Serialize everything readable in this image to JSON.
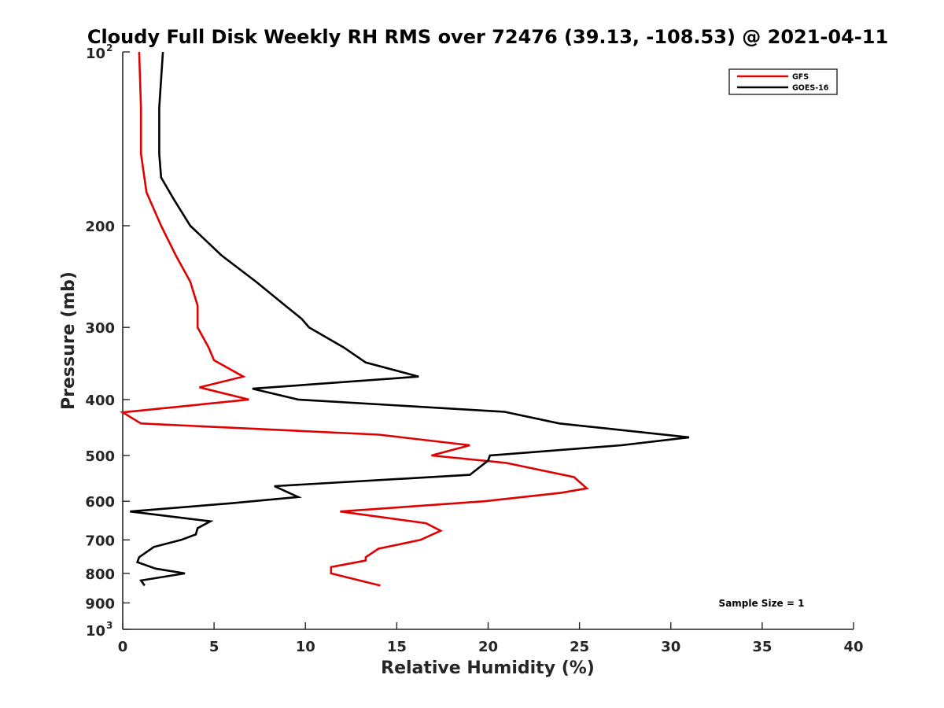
{
  "chart_data": {
    "type": "line",
    "title": "Cloudy Full Disk Weekly RH RMS over 72476 (39.13, -108.53) @ 2021-04-11",
    "xlabel": "Relative Humidity (%)",
    "ylabel": "Pressure (mb)",
    "xlim": [
      0,
      40
    ],
    "ylim": [
      100,
      1000
    ],
    "y_scale": "log",
    "y_reversed": true,
    "x_ticks": [
      0,
      5,
      10,
      15,
      20,
      25,
      30,
      35,
      40
    ],
    "y_ticks": [
      {
        "value": 100,
        "base": "10",
        "exp": "2"
      },
      {
        "value": 200,
        "label": "200"
      },
      {
        "value": 300,
        "label": "300"
      },
      {
        "value": 400,
        "label": "400"
      },
      {
        "value": 500,
        "label": "500"
      },
      {
        "value": 600,
        "label": "600"
      },
      {
        "value": 700,
        "label": "700"
      },
      {
        "value": 800,
        "label": "800"
      },
      {
        "value": 900,
        "label": "900"
      },
      {
        "value": 1000,
        "base": "10",
        "exp": "3"
      }
    ],
    "grid": false,
    "legend_position": "top-right",
    "annotation": "Sample Size = 1",
    "series": [
      {
        "name": "GFS",
        "color": "#e00000",
        "points": [
          [
            0.9,
            100
          ],
          [
            1.0,
            125
          ],
          [
            1.0,
            150
          ],
          [
            1.3,
            175
          ],
          [
            2.1,
            200
          ],
          [
            2.9,
            225
          ],
          [
            3.7,
            250
          ],
          [
            4.1,
            275
          ],
          [
            4.1,
            300
          ],
          [
            4.7,
            325
          ],
          [
            5.0,
            342
          ],
          [
            6.6,
            365
          ],
          [
            4.2,
            381
          ],
          [
            6.9,
            400
          ],
          [
            0.0,
            421
          ],
          [
            1.0,
            440
          ],
          [
            14.0,
            460
          ],
          [
            19.0,
            480
          ],
          [
            16.9,
            500
          ],
          [
            21.0,
            515
          ],
          [
            24.7,
            545
          ],
          [
            25.4,
            570
          ],
          [
            24.0,
            580
          ],
          [
            19.8,
            600
          ],
          [
            11.9,
            625
          ],
          [
            16.6,
            655
          ],
          [
            17.4,
            675
          ],
          [
            16.3,
            700
          ],
          [
            14.0,
            725
          ],
          [
            13.3,
            750
          ],
          [
            13.3,
            760
          ],
          [
            11.4,
            780
          ],
          [
            11.4,
            800
          ],
          [
            14.1,
            840
          ]
        ]
      },
      {
        "name": "GOES-16",
        "color": "#000000",
        "points": [
          [
            2.2,
            100
          ],
          [
            2.0,
            125
          ],
          [
            2.0,
            150
          ],
          [
            2.1,
            165
          ],
          [
            2.8,
            180
          ],
          [
            3.7,
            200
          ],
          [
            5.4,
            225
          ],
          [
            7.3,
            250
          ],
          [
            8.9,
            275
          ],
          [
            9.8,
            290
          ],
          [
            10.2,
            300
          ],
          [
            12.1,
            325
          ],
          [
            13.3,
            345
          ],
          [
            16.2,
            365
          ],
          [
            7.1,
            383
          ],
          [
            9.6,
            400
          ],
          [
            20.9,
            420
          ],
          [
            23.9,
            440
          ],
          [
            31.0,
            465
          ],
          [
            27.3,
            480
          ],
          [
            20.1,
            500
          ],
          [
            20.0,
            510
          ],
          [
            19.0,
            540
          ],
          [
            8.3,
            565
          ],
          [
            9.6,
            590
          ],
          [
            5.9,
            605
          ],
          [
            0.4,
            625
          ],
          [
            4.8,
            650
          ],
          [
            4.1,
            668
          ],
          [
            4.0,
            685
          ],
          [
            3.2,
            700
          ],
          [
            1.7,
            720
          ],
          [
            0.9,
            750
          ],
          [
            0.8,
            765
          ],
          [
            1.8,
            785
          ],
          [
            3.4,
            800
          ],
          [
            1.0,
            823
          ],
          [
            1.2,
            840
          ]
        ]
      }
    ]
  }
}
